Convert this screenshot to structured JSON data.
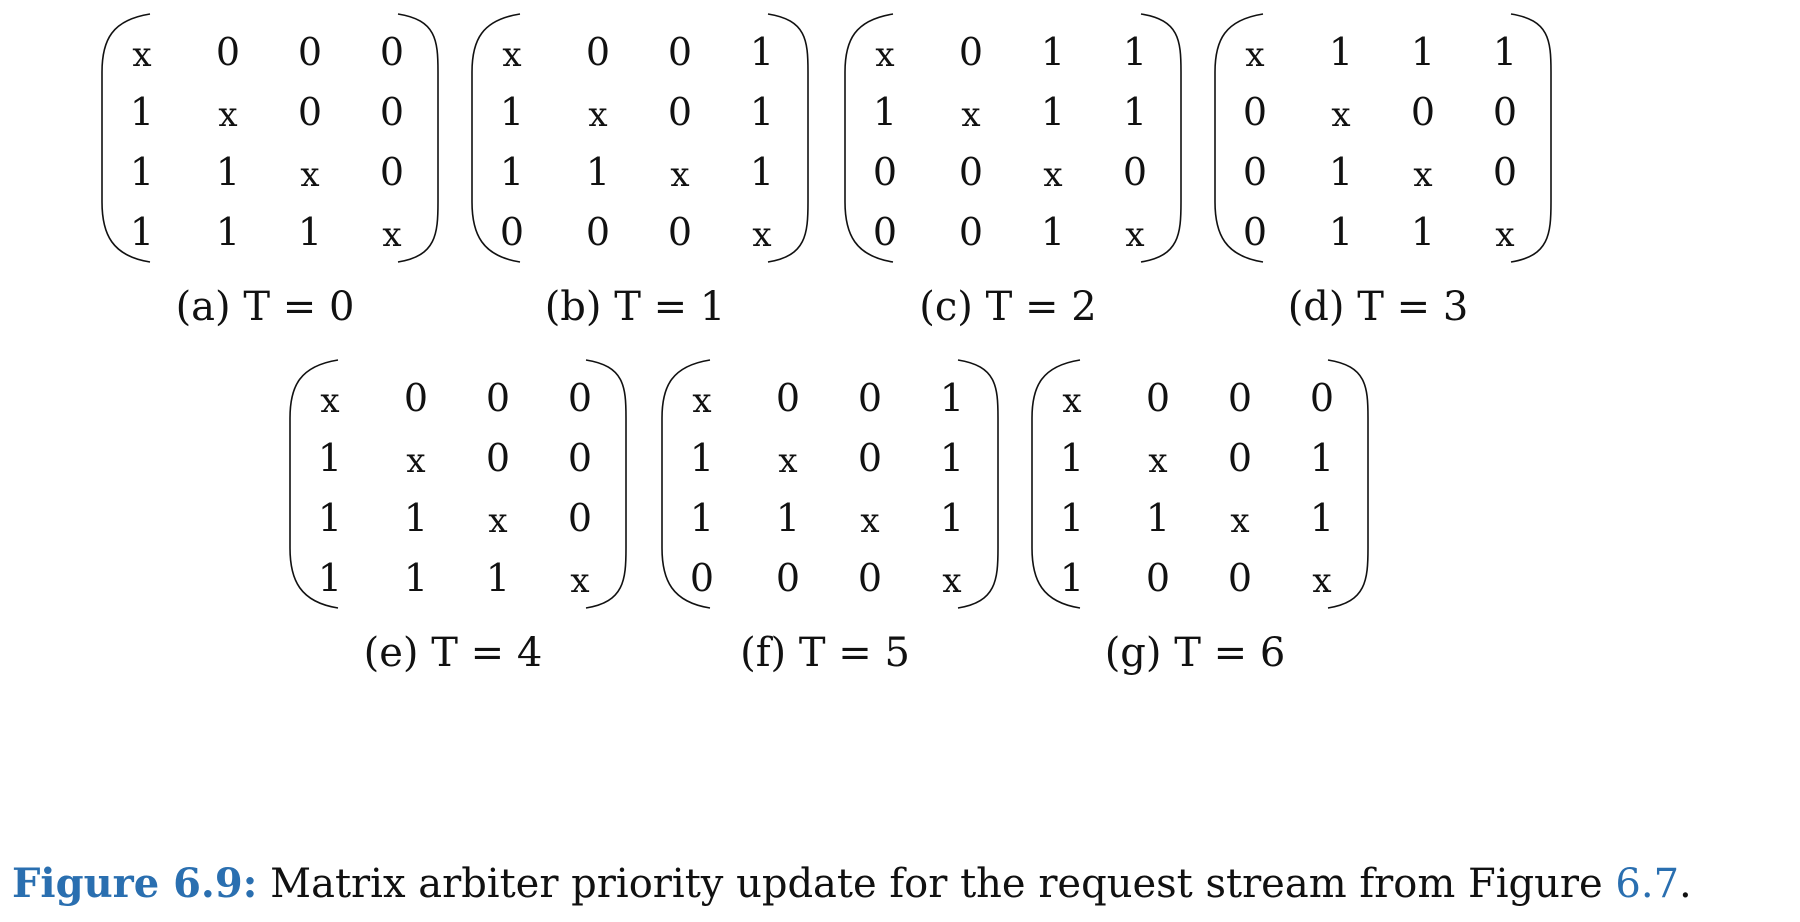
{
  "figure": {
    "label": "Figure 6.9:",
    "text_before_ref": " Matrix arbiter priority update for the request stream from Figure ",
    "ref": "6.7",
    "text_after_ref": "."
  },
  "matrices": [
    {
      "caption": "(a) T = 0",
      "rows": [
        [
          "x",
          "0",
          "0",
          "0"
        ],
        [
          "1",
          "x",
          "0",
          "0"
        ],
        [
          "1",
          "1",
          "x",
          "0"
        ],
        [
          "1",
          "1",
          "1",
          "x"
        ]
      ]
    },
    {
      "caption": "(b) T = 1",
      "rows": [
        [
          "x",
          "0",
          "0",
          "1"
        ],
        [
          "1",
          "x",
          "0",
          "1"
        ],
        [
          "1",
          "1",
          "x",
          "1"
        ],
        [
          "0",
          "0",
          "0",
          "x"
        ]
      ]
    },
    {
      "caption": "(c) T = 2",
      "rows": [
        [
          "x",
          "0",
          "1",
          "1"
        ],
        [
          "1",
          "x",
          "1",
          "1"
        ],
        [
          "0",
          "0",
          "x",
          "0"
        ],
        [
          "0",
          "0",
          "1",
          "x"
        ]
      ]
    },
    {
      "caption": "(d) T = 3",
      "rows": [
        [
          "x",
          "1",
          "1",
          "1"
        ],
        [
          "0",
          "x",
          "0",
          "0"
        ],
        [
          "0",
          "1",
          "x",
          "0"
        ],
        [
          "0",
          "1",
          "1",
          "x"
        ]
      ]
    },
    {
      "caption": "(e) T = 4",
      "rows": [
        [
          "x",
          "0",
          "0",
          "0"
        ],
        [
          "1",
          "x",
          "0",
          "0"
        ],
        [
          "1",
          "1",
          "x",
          "0"
        ],
        [
          "1",
          "1",
          "1",
          "x"
        ]
      ]
    },
    {
      "caption": "(f) T = 5",
      "rows": [
        [
          "x",
          "0",
          "0",
          "1"
        ],
        [
          "1",
          "x",
          "0",
          "1"
        ],
        [
          "1",
          "1",
          "x",
          "1"
        ],
        [
          "0",
          "0",
          "0",
          "x"
        ]
      ]
    },
    {
      "caption": "(g) T = 6",
      "rows": [
        [
          "x",
          "0",
          "0",
          "0"
        ],
        [
          "1",
          "x",
          "0",
          "1"
        ],
        [
          "1",
          "1",
          "x",
          "1"
        ],
        [
          "1",
          "0",
          "0",
          "x"
        ]
      ]
    }
  ]
}
